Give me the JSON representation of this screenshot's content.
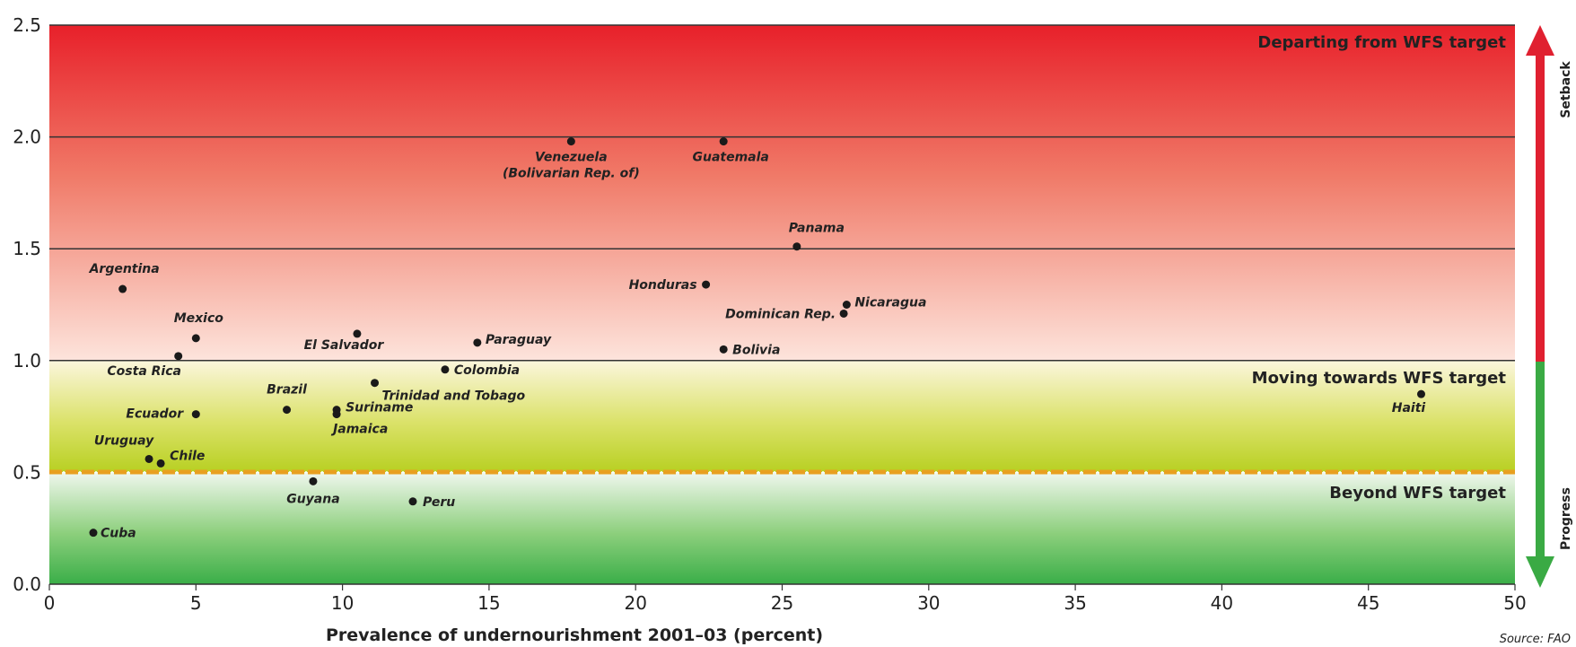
{
  "chart_data": {
    "type": "scatter",
    "xlabel": "Prevalence of undernourishment 2001–03 (percent)",
    "source": "Source: FAO",
    "xlim": [
      0,
      50
    ],
    "ylim": [
      0,
      2.5
    ],
    "x_ticks": [
      "0",
      "5",
      "10",
      "15",
      "20",
      "25",
      "30",
      "35",
      "40",
      "45",
      "50"
    ],
    "y_ticks": [
      "0.0",
      "0.5",
      "1.0",
      "1.5",
      "2.0",
      "2.5"
    ],
    "zones": {
      "departing": "Departing from WFS target",
      "moving": "Moving towards WFS target",
      "beyond": "Beyond WFS target"
    },
    "side_labels": {
      "setback": "Setback",
      "progress": "Progress"
    },
    "colors": {
      "red_top": "#e8202a",
      "red_mid": "#f28a78",
      "pink_low": "#fde0d8",
      "yellow_green": "#c8d82c",
      "green_bottom": "#3db04a",
      "target_line": "#e8a020",
      "arrow_red": "#e02030",
      "arrow_green": "#3aaa44"
    },
    "points": [
      {
        "name": "Venezuela",
        "name2": "(Bolivarian Rep. of)",
        "x": 17.8,
        "y": 1.98
      },
      {
        "name": "Guatemala",
        "x": 23.0,
        "y": 1.98
      },
      {
        "name": "Panama",
        "x": 25.5,
        "y": 1.51
      },
      {
        "name": "Argentina",
        "x": 2.5,
        "y": 1.32
      },
      {
        "name": "Honduras",
        "x": 22.4,
        "y": 1.34
      },
      {
        "name": "Nicaragua",
        "x": 27.2,
        "y": 1.25
      },
      {
        "name": "Dominican Rep.",
        "x": 27.1,
        "y": 1.21
      },
      {
        "name": "Mexico",
        "x": 5.0,
        "y": 1.1
      },
      {
        "name": "El Salvador",
        "x": 10.5,
        "y": 1.12
      },
      {
        "name": "Paraguay",
        "x": 14.6,
        "y": 1.08
      },
      {
        "name": "Bolivia",
        "x": 23.0,
        "y": 1.05
      },
      {
        "name": "Costa Rica",
        "x": 4.4,
        "y": 1.02
      },
      {
        "name": "Colombia",
        "x": 13.5,
        "y": 0.96
      },
      {
        "name": "Trinidad and Tobago",
        "x": 11.1,
        "y": 0.9
      },
      {
        "name": "Brazil",
        "x": 8.1,
        "y": 0.78
      },
      {
        "name": "Suriname",
        "x": 9.8,
        "y": 0.78
      },
      {
        "name": "Jamaica",
        "x": 9.8,
        "y": 0.76
      },
      {
        "name": "Ecuador",
        "x": 5.0,
        "y": 0.76
      },
      {
        "name": "Haiti",
        "x": 46.8,
        "y": 0.85
      },
      {
        "name": "Uruguay",
        "x": 3.4,
        "y": 0.56
      },
      {
        "name": "Chile",
        "x": 3.8,
        "y": 0.54
      },
      {
        "name": "Guyana",
        "x": 9.0,
        "y": 0.46
      },
      {
        "name": "Peru",
        "x": 12.4,
        "y": 0.37
      },
      {
        "name": "Cuba",
        "x": 1.5,
        "y": 0.23
      }
    ]
  }
}
